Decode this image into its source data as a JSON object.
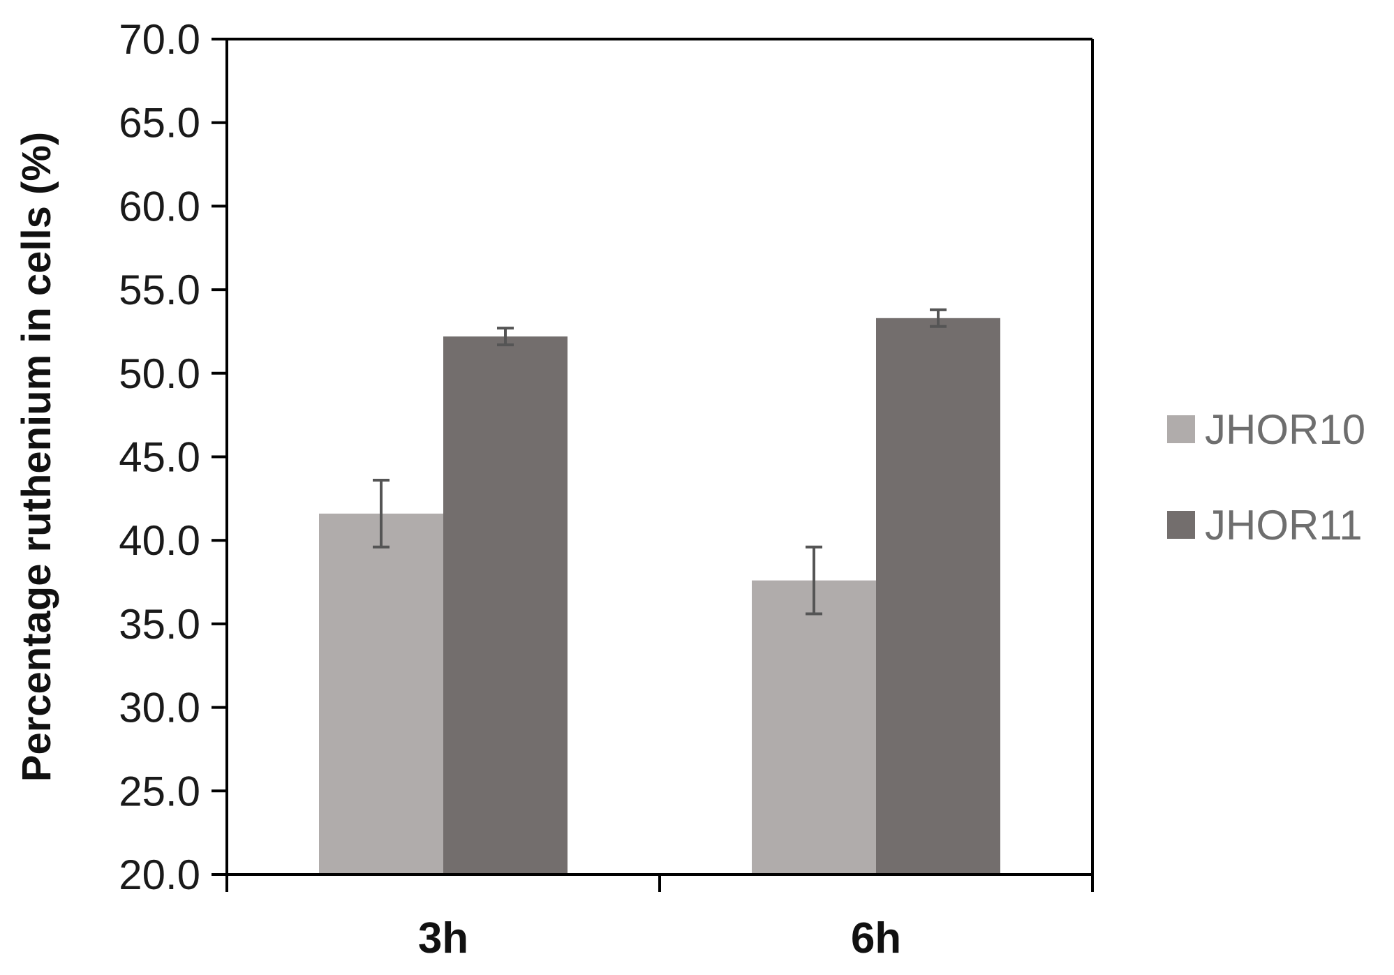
{
  "chart_data": {
    "type": "bar",
    "title": "",
    "xlabel": "",
    "ylabel": "Percentage ruthenium in cells (%)",
    "ylim": [
      20,
      70
    ],
    "yticks": [
      "20.0",
      "25.0",
      "30.0",
      "35.0",
      "40.0",
      "45.0",
      "50.0",
      "55.0",
      "60.0",
      "65.0",
      "70.0"
    ],
    "categories": [
      "3h",
      "6h"
    ],
    "series": [
      {
        "name": "JHOR10",
        "color": "#b0acab",
        "values": [
          41.6,
          37.6
        ],
        "errors": [
          2.0,
          2.0
        ]
      },
      {
        "name": "JHOR11",
        "color": "#736e6d",
        "values": [
          52.2,
          53.3
        ],
        "errors": [
          0.5,
          0.5
        ]
      }
    ],
    "grid": false,
    "legend_position": "right"
  }
}
